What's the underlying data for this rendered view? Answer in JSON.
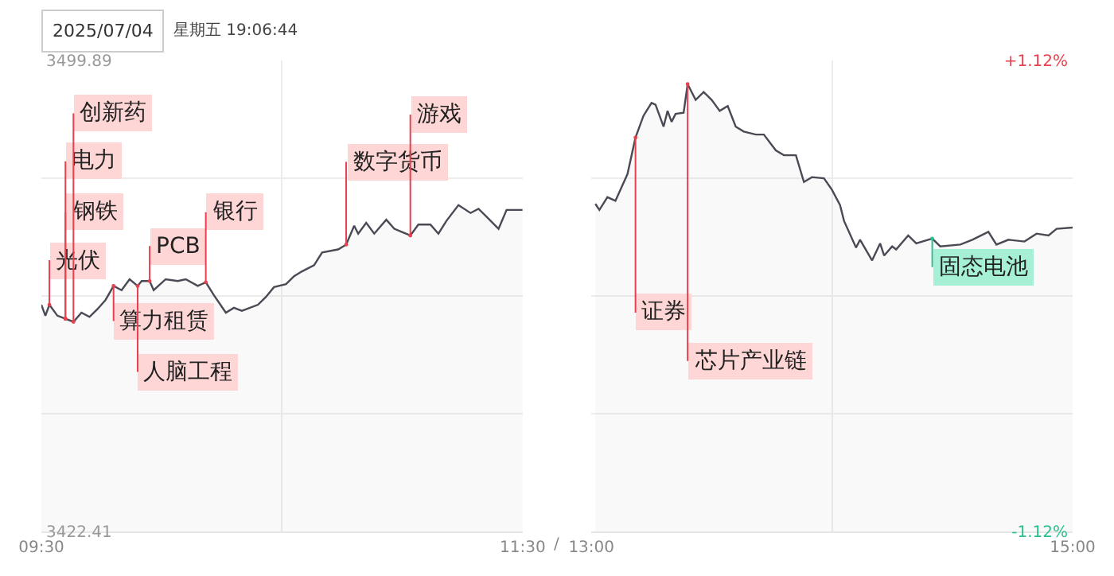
{
  "chart_data": [
    {
      "type": "area",
      "title": "2025/07/04",
      "subtitle": "星期五 19:06:44",
      "x": [
        "2025-07-04T09:30",
        "2025-07-04T09:31",
        "2025-07-04T09:32",
        "2025-07-04T09:34",
        "2025-07-04T09:36",
        "2025-07-04T09:38",
        "2025-07-04T09:40",
        "2025-07-04T09:42",
        "2025-07-04T09:44",
        "2025-07-04T09:46",
        "2025-07-04T09:48",
        "2025-07-04T09:50",
        "2025-07-04T09:52",
        "2025-07-04T09:54",
        "2025-07-04T09:55",
        "2025-07-04T09:57",
        "2025-07-04T09:58",
        "2025-07-04T10:01",
        "2025-07-04T10:04",
        "2025-07-04T10:06",
        "2025-07-04T10:09",
        "2025-07-04T10:11",
        "2025-07-04T10:13",
        "2025-07-04T10:16",
        "2025-07-04T10:18",
        "2025-07-04T10:20",
        "2025-07-04T10:24",
        "2025-07-04T10:26",
        "2025-07-04T10:28",
        "2025-07-04T10:31",
        "2025-07-04T10:33",
        "2025-07-04T10:35",
        "2025-07-04T10:38",
        "2025-07-04T10:40",
        "2025-07-04T10:44",
        "2025-07-04T10:46",
        "2025-07-04T10:48",
        "2025-07-04T10:49",
        "2025-07-04T10:51",
        "2025-07-04T10:53",
        "2025-07-04T10:56",
        "2025-07-04T10:58",
        "2025-07-04T11:02",
        "2025-07-04T11:04",
        "2025-07-04T11:07",
        "2025-07-04T11:09",
        "2025-07-04T11:11",
        "2025-07-04T11:14",
        "2025-07-04T11:17",
        "2025-07-04T11:19",
        "2025-07-04T11:21",
        "2025-07-04T11:24",
        "2025-07-04T11:26",
        "2025-07-04T11:30"
      ],
      "series": [
        {
          "color": "#4a4a55",
          "values": [
            3459.7,
            3457.9,
            3459.7,
            3457.9,
            3457.4,
            3456.9,
            3458.4,
            3457.7,
            3459.0,
            3460.5,
            3462.8,
            3462.1,
            3463.9,
            3462.8,
            3463.6,
            3463.6,
            3462.1,
            3463.9,
            3463.6,
            3463.9,
            3462.8,
            3463.4,
            3461.3,
            3458.4,
            3459.2,
            3458.7,
            3459.7,
            3461.0,
            3462.6,
            3463.1,
            3464.4,
            3465.2,
            3466.2,
            3468.3,
            3468.8,
            3469.6,
            3472.7,
            3471.4,
            3473.2,
            3471.4,
            3473.7,
            3472.2,
            3471.1,
            3472.9,
            3472.9,
            3471.4,
            3473.5,
            3476.1,
            3474.8,
            3475.5,
            3474.2,
            3472.2,
            3475.3,
            3475.3
          ]
        }
      ],
      "xlim": [
        "2025-07-04T09:30",
        "2025-07-04T11:30"
      ],
      "xticks": [
        {
          "value": "2025-07-04T09:30",
          "label": "09:30"
        },
        {
          "value": "2025-07-04T10:30",
          "label": null
        },
        {
          "value": "2025-07-04T11:30",
          "label": "11:30"
        }
      ],
      "ylim": [
        3422.41,
        3499.89
      ],
      "yticks": [
        3422.41,
        {
          "value": 3441.78,
          "label": null
        },
        {
          "value": 3461.15,
          "label": null
        },
        {
          "value": 3480.52,
          "label": null
        },
        3499.89
      ],
      "grid": true,
      "marker": "none",
      "annotations": [
        {
          "text": "光伏",
          "x": "2025-07-04T09:32",
          "y": 3459.7
        },
        {
          "text": "钢铁",
          "x": "2025-07-04T09:36",
          "y": 3457.4
        },
        {
          "text": "电力",
          "x": "2025-07-04T09:36",
          "y": 3457.4
        },
        {
          "text": "创新药",
          "x": "2025-07-04T09:38",
          "y": 3456.9
        },
        {
          "text": "算力租赁",
          "x": "2025-07-04T09:48",
          "y": 3462.8
        },
        {
          "text": "人脑工程",
          "x": "2025-07-04T09:54",
          "y": 3462.8
        },
        {
          "text": "PCB",
          "x": "2025-07-04T09:57",
          "y": 3463.6
        },
        {
          "text": "银行",
          "x": "2025-07-04T10:11",
          "y": 3463.4
        },
        {
          "text": "数字货币",
          "x": "2025-07-04T10:46",
          "y": 3469.6
        },
        {
          "text": "游戏",
          "x": "2025-07-04T11:02",
          "y": 3471.1
        }
      ]
    },
    {
      "type": "area",
      "x": [
        "2025-07-04T13:01",
        "2025-07-04T13:02",
        "2025-07-04T13:04",
        "2025-07-04T13:06",
        "2025-07-04T13:09",
        "2025-07-04T13:11",
        "2025-07-04T13:13",
        "2025-07-04T13:15",
        "2025-07-04T13:16",
        "2025-07-04T13:18",
        "2025-07-04T13:19",
        "2025-07-04T13:20",
        "2025-07-04T13:21",
        "2025-07-04T13:23",
        "2025-07-04T13:24",
        "2025-07-04T13:26",
        "2025-07-04T13:28",
        "2025-07-04T13:30",
        "2025-07-04T13:32",
        "2025-07-04T13:34",
        "2025-07-04T13:36",
        "2025-07-04T13:38",
        "2025-07-04T13:41",
        "2025-07-04T13:43",
        "2025-07-04T13:46",
        "2025-07-04T13:48",
        "2025-07-04T13:51",
        "2025-07-04T13:53",
        "2025-07-04T13:55",
        "2025-07-04T13:58",
        "2025-07-04T14:00",
        "2025-07-04T14:02",
        "2025-07-04T14:03",
        "2025-07-04T14:06",
        "2025-07-04T14:07",
        "2025-07-04T14:10",
        "2025-07-04T14:12",
        "2025-07-04T14:13",
        "2025-07-04T14:15",
        "2025-07-04T14:16",
        "2025-07-04T14:19",
        "2025-07-04T14:21",
        "2025-07-04T14:25",
        "2025-07-04T14:27",
        "2025-07-04T14:32",
        "2025-07-04T14:35",
        "2025-07-04T14:39",
        "2025-07-04T14:41",
        "2025-07-04T14:44",
        "2025-07-04T14:48",
        "2025-07-04T14:51",
        "2025-07-04T14:54",
        "2025-07-04T14:56",
        "2025-07-04T15:00"
      ],
      "series": [
        {
          "color": "#4a4a55",
          "values": [
            3476.3,
            3475.3,
            3477.4,
            3476.8,
            3481.2,
            3487.2,
            3490.8,
            3492.9,
            3492.6,
            3489.0,
            3491.6,
            3489.8,
            3491.1,
            3491.3,
            3496.0,
            3493.4,
            3494.7,
            3493.4,
            3491.6,
            3492.4,
            3489.0,
            3488.2,
            3487.7,
            3487.7,
            3485.1,
            3484.3,
            3484.3,
            3479.9,
            3480.7,
            3480.5,
            3478.6,
            3476.1,
            3473.5,
            3469.1,
            3470.4,
            3467.0,
            3469.8,
            3467.8,
            3469.3,
            3468.8,
            3471.1,
            3469.8,
            3470.6,
            3469.3,
            3469.6,
            3470.4,
            3471.7,
            3469.6,
            3470.4,
            3470.1,
            3471.4,
            3471.1,
            3472.2,
            3472.4
          ]
        }
      ],
      "xlim": [
        "2025-07-04T13:00",
        "2025-07-04T15:00"
      ],
      "xticks": [
        {
          "value": "2025-07-04T13:00",
          "label": "13:00"
        },
        {
          "value": "2025-07-04T14:00",
          "label": null
        },
        {
          "value": "2025-07-04T15:00",
          "label": "15:00"
        }
      ],
      "ylim": [
        3422.41,
        3499.89
      ],
      "yticks": [
        {
          "value": 3422.41,
          "label": null
        },
        {
          "value": 3441.78,
          "label": null
        },
        {
          "value": 3461.15,
          "label": null
        },
        {
          "value": 3480.52,
          "label": null
        },
        {
          "value": 3499.89,
          "label": null
        }
      ],
      "y2lim": [
        -1.12,
        1.12
      ],
      "y2ticks": [
        {
          "value": -1.12,
          "label": "-1.12%"
        },
        {
          "value": 1.12,
          "label": "+1.12%"
        }
      ],
      "tick_labels": "x",
      "grid": true,
      "marker": "none",
      "annotations": [
        "/",
        {
          "text": "证券",
          "x": "2025-07-04T13:11",
          "y": 3487.2
        },
        {
          "text": "芯片产业链",
          "x": "2025-07-04T13:24",
          "y": 3496.0
        },
        {
          "text": "固态电池",
          "x": "2025-07-04T14:25",
          "y": 3470.6
        }
      ]
    }
  ]
}
